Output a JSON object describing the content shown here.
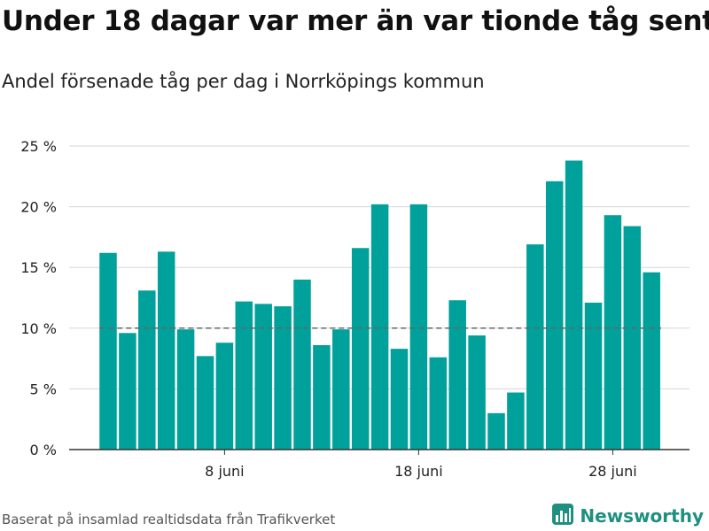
{
  "title": "Under 18 dagar var mer än var tionde tåg sent",
  "subtitle": "Andel försenade tåg per dag i Norrköpings kommun",
  "source": "Baserat på insamlad realtidsdata från Trafikverket",
  "brand": {
    "name": "Newsworthy",
    "logo_icon": "bar-chart-logo-icon",
    "color": "#1e8f80"
  },
  "colors": {
    "bar": "#00a19a",
    "grid": "#d6d6d6",
    "reference_line": "#666666",
    "axis": "#333333"
  },
  "chart_data": {
    "type": "bar",
    "xlabel": "",
    "ylabel": "",
    "ylim": [
      0,
      25
    ],
    "y_ticks": [
      0,
      5,
      10,
      15,
      20,
      25
    ],
    "y_tick_labels": [
      "0 %",
      "5 %",
      "10 %",
      "15 %",
      "20 %",
      "25 %"
    ],
    "x_tick_labels": [
      {
        "label": "8 juni",
        "day": 8
      },
      {
        "label": "18 juni",
        "day": 18
      },
      {
        "label": "28 juni",
        "day": 28
      }
    ],
    "grid": true,
    "reference_line": 10,
    "days": [
      2,
      3,
      4,
      5,
      6,
      7,
      8,
      9,
      10,
      11,
      12,
      13,
      14,
      15,
      16,
      17,
      18,
      19,
      20,
      21,
      22,
      23,
      24,
      25,
      26,
      27,
      28,
      29,
      30
    ],
    "values": [
      16.2,
      9.6,
      13.1,
      16.3,
      9.9,
      7.7,
      8.8,
      12.2,
      12.0,
      11.8,
      14.0,
      8.6,
      9.9,
      16.6,
      20.2,
      8.3,
      20.2,
      7.6,
      12.3,
      9.4,
      3.0,
      4.7,
      16.9,
      22.1,
      23.8,
      12.1,
      19.3,
      18.4,
      14.6
    ]
  }
}
